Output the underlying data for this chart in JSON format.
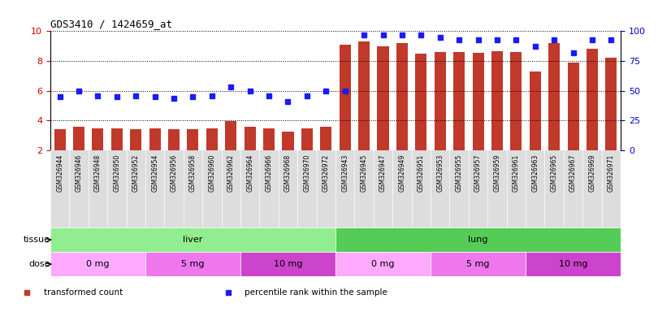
{
  "title": "GDS3410 / 1424659_at",
  "samples": [
    "GSM326944",
    "GSM326946",
    "GSM326948",
    "GSM326950",
    "GSM326952",
    "GSM326954",
    "GSM326956",
    "GSM326958",
    "GSM326960",
    "GSM326962",
    "GSM326964",
    "GSM326966",
    "GSM326968",
    "GSM326970",
    "GSM326972",
    "GSM326943",
    "GSM326945",
    "GSM326947",
    "GSM326949",
    "GSM326951",
    "GSM326953",
    "GSM326955",
    "GSM326957",
    "GSM326959",
    "GSM326961",
    "GSM326963",
    "GSM326965",
    "GSM326967",
    "GSM326969",
    "GSM326971"
  ],
  "transformed_count": [
    3.4,
    3.6,
    3.5,
    3.5,
    3.4,
    3.5,
    3.4,
    3.45,
    3.5,
    3.95,
    3.6,
    3.5,
    3.25,
    3.5,
    3.6,
    9.1,
    9.3,
    9.0,
    9.2,
    8.5,
    8.6,
    8.6,
    8.55,
    8.65,
    8.6,
    7.3,
    9.2,
    7.9,
    8.8,
    8.2
  ],
  "percentile_rank": [
    45,
    50,
    46,
    45,
    46,
    45,
    44,
    45,
    46,
    53,
    50,
    46,
    41,
    46,
    50,
    50,
    97,
    97,
    97,
    97,
    95,
    93,
    93,
    93,
    93,
    87,
    93,
    82,
    93,
    93
  ],
  "ylim_left": [
    2,
    10
  ],
  "ylim_right": [
    0,
    100
  ],
  "yticks_left": [
    2,
    4,
    6,
    8,
    10
  ],
  "yticks_right": [
    0,
    25,
    50,
    75,
    100
  ],
  "bar_color": "#c0392b",
  "dot_color": "#1a1aff",
  "tissue_groups": [
    {
      "label": "liver",
      "start": 0,
      "end": 15,
      "color": "#90ee90"
    },
    {
      "label": "lung",
      "start": 15,
      "end": 30,
      "color": "#55cc55"
    }
  ],
  "dose_groups": [
    {
      "label": "0 mg",
      "start": 0,
      "end": 5,
      "color": "#ffaaff"
    },
    {
      "label": "5 mg",
      "start": 5,
      "end": 10,
      "color": "#ee77ee"
    },
    {
      "label": "10 mg",
      "start": 10,
      "end": 15,
      "color": "#cc44cc"
    },
    {
      "label": "0 mg",
      "start": 15,
      "end": 20,
      "color": "#ffaaff"
    },
    {
      "label": "5 mg",
      "start": 20,
      "end": 25,
      "color": "#ee77ee"
    },
    {
      "label": "10 mg",
      "start": 25,
      "end": 30,
      "color": "#cc44cc"
    }
  ]
}
